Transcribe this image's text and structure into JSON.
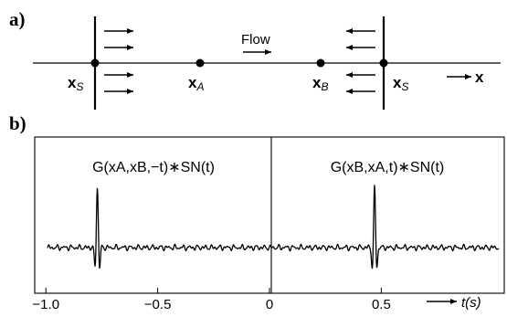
{
  "panel_a": {
    "label": "a)",
    "flow_label": "Flow",
    "points": [
      {
        "main": "x",
        "sub": "S"
      },
      {
        "main": "x",
        "sub": "A"
      },
      {
        "main": "x",
        "sub": "B"
      },
      {
        "main": "x",
        "sub": "S"
      }
    ],
    "axis_label": "x"
  },
  "panel_b": {
    "label": "b)",
    "left_formula": "G(xA,xB,−t)∗SN(t)",
    "right_formula": "G(xB,xA,t)∗SN(t)",
    "x_ticks": [
      {
        "value": -1.0,
        "label": "−1.0"
      },
      {
        "value": -0.5,
        "label": "−0.5"
      },
      {
        "value": 0,
        "label": "0"
      },
      {
        "value": 0.5,
        "label": "0.5"
      }
    ],
    "x_axis_label": "t(s)",
    "x_range": [
      -1.05,
      1.05
    ],
    "wavelet_centers": [
      -0.77,
      0.47
    ]
  }
}
